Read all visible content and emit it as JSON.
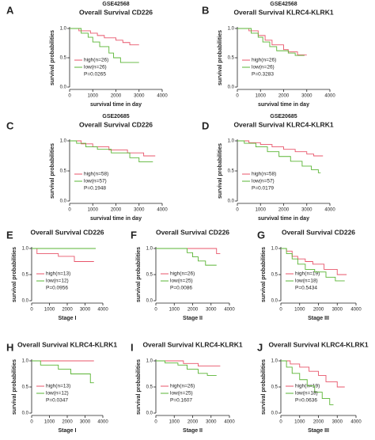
{
  "chart_data": [
    {
      "type": "line",
      "label": "A",
      "subtitle": "GSE42568",
      "title": "Overall Survival CD226",
      "xlabel": "survival time in day",
      "ylabel": "survival probabilities",
      "p_value": "P=0.0265",
      "xlim": [
        0,
        4000
      ],
      "xticks": [
        0,
        1000,
        2000,
        3000,
        4000
      ],
      "ylim": [
        0,
        1
      ],
      "yticks": [
        {
          "value": 0,
          "label": "0.0"
        },
        0.5,
        {
          "value": 1,
          "label": "1.0"
        }
      ],
      "series": [
        {
          "name": "high(n=26)",
          "color": "#e8556a",
          "x": [
            0,
            400,
            900,
            1200,
            1500,
            2000,
            2300,
            2600,
            3000
          ],
          "values": [
            1,
            0.96,
            0.92,
            0.88,
            0.84,
            0.8,
            0.76,
            0.72,
            0.72
          ]
        },
        {
          "name": "low(n=26)",
          "color": "#5ab534",
          "x": [
            0,
            500,
            800,
            1000,
            1300,
            1700,
            1900,
            2200,
            3000
          ],
          "values": [
            1,
            0.92,
            0.85,
            0.77,
            0.69,
            0.58,
            0.5,
            0.42,
            0.42
          ]
        }
      ]
    },
    {
      "type": "line",
      "label": "B",
      "subtitle": "GSE42568",
      "title": "Overall Survival KLRC4-KLRK1",
      "xlabel": "survival time in day",
      "ylabel": "survival probabilities",
      "p_value": "P=0.3283",
      "xlim": [
        0,
        4000
      ],
      "xticks": [
        0,
        1000,
        2000,
        3000,
        4000
      ],
      "ylim": [
        0,
        1
      ],
      "yticks": [
        {
          "value": 0,
          "label": "0.0"
        },
        0.5,
        {
          "value": 1,
          "label": "1.0"
        }
      ],
      "series": [
        {
          "name": "high(n=26)",
          "color": "#e8556a",
          "x": [
            0,
            500,
            900,
            1200,
            1500,
            2000,
            2200,
            2600,
            3000
          ],
          "values": [
            1,
            0.96,
            0.88,
            0.8,
            0.72,
            0.64,
            0.6,
            0.55,
            0.55
          ]
        },
        {
          "name": "low(n=26)",
          "color": "#5ab534",
          "x": [
            0,
            600,
            900,
            1100,
            1400,
            1700,
            2200,
            2500,
            2900
          ],
          "values": [
            1,
            0.92,
            0.85,
            0.77,
            0.69,
            0.62,
            0.58,
            0.54,
            0.54
          ]
        }
      ]
    },
    {
      "type": "line",
      "label": "C",
      "subtitle": "GSE20685",
      "title": "Overall Survival CD226",
      "xlabel": "survival time in day",
      "ylabel": "survival probabilities",
      "p_value": "P=0.1948",
      "xlim": [
        0,
        4000
      ],
      "xticks": [
        0,
        1000,
        2000,
        3000,
        4000
      ],
      "ylim": [
        0,
        1
      ],
      "yticks": [
        {
          "value": 0,
          "label": "0.0"
        },
        0.5,
        {
          "value": 1,
          "label": "1.0"
        }
      ],
      "series": [
        {
          "name": "high(n=58)",
          "color": "#e8556a",
          "x": [
            0,
            500,
            1000,
            1700,
            2500,
            3200,
            3700
          ],
          "values": [
            1,
            0.95,
            0.9,
            0.85,
            0.8,
            0.75,
            0.75
          ]
        },
        {
          "name": "low(n=57)",
          "color": "#5ab534",
          "x": [
            0,
            300,
            700,
            1200,
            1800,
            2600,
            3000,
            3600
          ],
          "values": [
            1,
            0.96,
            0.9,
            0.86,
            0.8,
            0.72,
            0.65,
            0.65
          ]
        }
      ]
    },
    {
      "type": "line",
      "label": "D",
      "subtitle": "GSE20685",
      "title": "Overall Survival KLRC4-KLRK1",
      "xlabel": "survival time in day",
      "ylabel": "survival probabilities",
      "p_value": "P=0.0179",
      "xlim": [
        0,
        4000
      ],
      "xticks": [
        0,
        1000,
        2000,
        3000,
        4000
      ],
      "ylim": [
        0,
        1
      ],
      "yticks": [
        {
          "value": 0,
          "label": "0.0"
        },
        0.5,
        {
          "value": 1,
          "label": "1.0"
        }
      ],
      "series": [
        {
          "name": "high(n=58)",
          "color": "#e8556a",
          "x": [
            0,
            500,
            1000,
            1500,
            2000,
            2500,
            3000,
            3300,
            3700
          ],
          "values": [
            1,
            0.97,
            0.94,
            0.9,
            0.86,
            0.82,
            0.78,
            0.75,
            0.75
          ]
        },
        {
          "name": "low(n=57)",
          "color": "#5ab534",
          "x": [
            0,
            300,
            800,
            1300,
            1800,
            2300,
            2800,
            3200,
            3500,
            3600
          ],
          "values": [
            1,
            0.96,
            0.9,
            0.82,
            0.74,
            0.66,
            0.58,
            0.52,
            0.47,
            0.47
          ]
        }
      ]
    },
    {
      "type": "line",
      "label": "E",
      "title": "Overall Survival CD226",
      "xlabel": "Stage I",
      "ylabel": "survival probabilities",
      "p_value": "P=0.0956",
      "xlim": [
        0,
        4000
      ],
      "xticks": [
        0,
        1000,
        2000,
        3000,
        4000
      ],
      "ylim": [
        0,
        1
      ],
      "yticks": [
        {
          "value": 0,
          "label": "0.0"
        },
        0.5,
        {
          "value": 1,
          "label": "1.0"
        }
      ],
      "series": [
        {
          "name": "high(n=13)",
          "color": "#e8556a",
          "x": [
            0,
            300,
            1500,
            2400,
            3500
          ],
          "values": [
            1,
            0.9,
            0.85,
            0.75,
            0.75
          ]
        },
        {
          "name": "low(n=12)",
          "color": "#5ab534",
          "x": [
            0,
            3600
          ],
          "values": [
            1,
            1
          ]
        }
      ]
    },
    {
      "type": "line",
      "label": "F",
      "title": "Overall Survival CD226",
      "xlabel": "Stage II",
      "ylabel": "survival probabilities",
      "p_value": "P=0.0086",
      "xlim": [
        0,
        4000
      ],
      "xticks": [
        0,
        1000,
        2000,
        3000,
        4000
      ],
      "ylim": [
        0,
        1
      ],
      "yticks": [
        {
          "value": 0,
          "label": "0.0"
        },
        0.5,
        {
          "value": 1,
          "label": "1.0"
        }
      ],
      "series": [
        {
          "name": "high(n=26)",
          "color": "#e8556a",
          "x": [
            0,
            3300,
            3500
          ],
          "values": [
            1,
            0.9,
            0.9
          ]
        },
        {
          "name": "low(n=25)",
          "color": "#5ab534",
          "x": [
            0,
            1700,
            2000,
            2300,
            2700,
            3300
          ],
          "values": [
            1,
            0.92,
            0.84,
            0.76,
            0.68,
            0.68
          ]
        }
      ]
    },
    {
      "type": "line",
      "label": "G",
      "title": "Overall Survival CD226",
      "xlabel": "Stage III",
      "ylabel": "survival probabilities",
      "p_value": "P=0.5434",
      "xlim": [
        0,
        4000
      ],
      "xticks": [
        0,
        1000,
        2000,
        3000,
        4000
      ],
      "ylim": [
        0,
        1
      ],
      "yticks": [
        {
          "value": 0,
          "label": "0.0"
        },
        0.5,
        {
          "value": 1,
          "label": "1.0"
        }
      ],
      "series": [
        {
          "name": "high(n=19)",
          "color": "#e8556a",
          "x": [
            0,
            300,
            600,
            900,
            1300,
            1700,
            2300,
            3000,
            3500
          ],
          "values": [
            1,
            0.95,
            0.85,
            0.8,
            0.75,
            0.7,
            0.6,
            0.5,
            0.5
          ]
        },
        {
          "name": "low(n=18)",
          "color": "#5ab534",
          "x": [
            0,
            300,
            600,
            900,
            1300,
            1800,
            2400,
            2900,
            3400
          ],
          "values": [
            1,
            0.9,
            0.8,
            0.7,
            0.6,
            0.55,
            0.45,
            0.38,
            0.38
          ]
        }
      ]
    },
    {
      "type": "line",
      "label": "H",
      "title": "Overall Survival KLRC4-KLRK1",
      "xlabel": "Stage I",
      "ylabel": "survival probabilities",
      "p_value": "P=0.0347",
      "xlim": [
        0,
        4000
      ],
      "xticks": [
        0,
        1000,
        2000,
        3000,
        4000
      ],
      "ylim": [
        0,
        1
      ],
      "yticks": [
        {
          "value": 0,
          "label": "0.0"
        },
        0.5,
        {
          "value": 1,
          "label": "1.0"
        }
      ],
      "series": [
        {
          "name": "high(n=13)",
          "color": "#e8556a",
          "x": [
            0,
            3500
          ],
          "values": [
            1,
            1
          ]
        },
        {
          "name": "low(n=12)",
          "color": "#5ab534",
          "x": [
            0,
            500,
            1500,
            2200,
            3300,
            3500
          ],
          "values": [
            1,
            0.92,
            0.84,
            0.75,
            0.58,
            0.58
          ]
        }
      ]
    },
    {
      "type": "line",
      "label": "I",
      "title": "Overall Survival KLRC4-KLRK1",
      "xlabel": "Stage II",
      "ylabel": "survival probabilities",
      "p_value": "P=0.1607",
      "xlim": [
        0,
        4000
      ],
      "xticks": [
        0,
        1000,
        2000,
        3000,
        4000
      ],
      "ylim": [
        0,
        1
      ],
      "yticks": [
        {
          "value": 0,
          "label": "0.0"
        },
        0.5,
        {
          "value": 1,
          "label": "1.0"
        }
      ],
      "series": [
        {
          "name": "high(n=26)",
          "color": "#e8556a",
          "x": [
            0,
            1500,
            2300,
            3500
          ],
          "values": [
            1,
            0.95,
            0.9,
            0.9
          ]
        },
        {
          "name": "low(n=25)",
          "color": "#5ab534",
          "x": [
            0,
            500,
            1200,
            1700,
            2300,
            2800,
            3300
          ],
          "values": [
            1,
            0.96,
            0.92,
            0.84,
            0.76,
            0.72,
            0.72
          ]
        }
      ]
    },
    {
      "type": "line",
      "label": "J",
      "title": "Overall Survival KLRC4-KLRK1",
      "xlabel": "Stage III",
      "ylabel": "survival probabilities",
      "p_value": "P=0.0636",
      "xlim": [
        0,
        4000
      ],
      "xticks": [
        0,
        1000,
        2000,
        3000,
        4000
      ],
      "ylim": [
        0,
        1
      ],
      "yticks": [
        {
          "value": 0,
          "label": "0.0"
        },
        0.5,
        {
          "value": 1,
          "label": "1.0"
        }
      ],
      "series": [
        {
          "name": "high(n=19)",
          "color": "#e8556a",
          "x": [
            0,
            500,
            1000,
            1500,
            2000,
            2400,
            3000,
            3400
          ],
          "values": [
            1,
            0.94,
            0.88,
            0.8,
            0.72,
            0.6,
            0.5,
            0.5
          ]
        },
        {
          "name": "low(n=18)",
          "color": "#5ab534",
          "x": [
            0,
            300,
            600,
            1000,
            1400,
            1800,
            2200,
            2600,
            2800
          ],
          "values": [
            1,
            0.88,
            0.76,
            0.64,
            0.52,
            0.4,
            0.28,
            0.16,
            0.16
          ]
        }
      ]
    }
  ]
}
